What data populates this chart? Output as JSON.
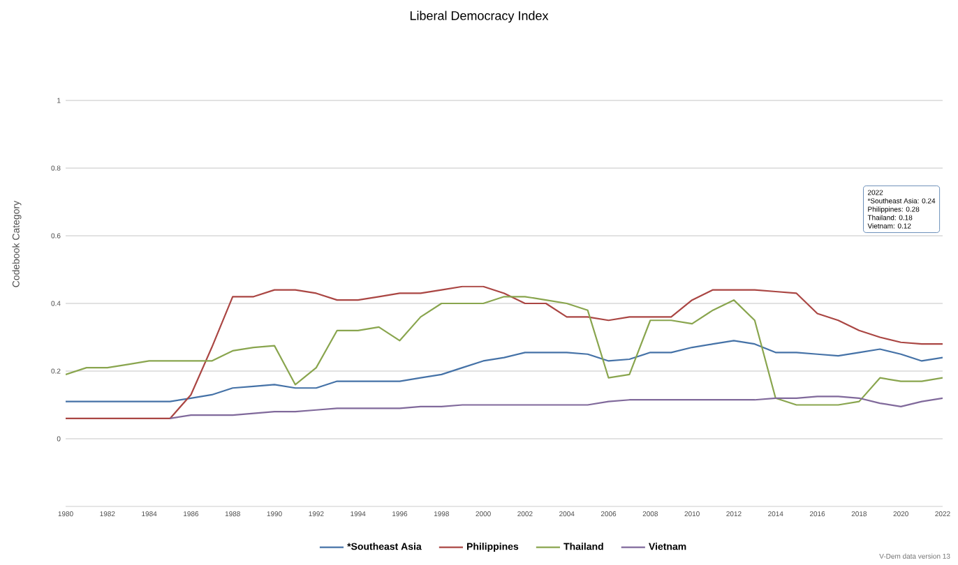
{
  "chart_data": {
    "type": "line",
    "title": "Liberal Democracy Index",
    "ylabel": "Codebook Category",
    "x": [
      1980,
      1981,
      1982,
      1983,
      1984,
      1985,
      1986,
      1987,
      1988,
      1989,
      1990,
      1991,
      1992,
      1993,
      1994,
      1995,
      1996,
      1997,
      1998,
      1999,
      2000,
      2001,
      2002,
      2003,
      2004,
      2005,
      2006,
      2007,
      2008,
      2009,
      2010,
      2011,
      2012,
      2013,
      2014,
      2015,
      2016,
      2017,
      2018,
      2019,
      2020,
      2021,
      2022
    ],
    "series": [
      {
        "name": "*Southeast Asia",
        "color": "#4572a7",
        "values": [
          0.11,
          0.11,
          0.11,
          0.11,
          0.11,
          0.11,
          0.12,
          0.13,
          0.15,
          0.155,
          0.16,
          0.15,
          0.15,
          0.17,
          0.17,
          0.17,
          0.17,
          0.18,
          0.19,
          0.21,
          0.23,
          0.24,
          0.255,
          0.255,
          0.255,
          0.25,
          0.23,
          0.235,
          0.255,
          0.255,
          0.27,
          0.28,
          0.29,
          0.28,
          0.255,
          0.255,
          0.25,
          0.245,
          0.255,
          0.265,
          0.25,
          0.23,
          0.24
        ]
      },
      {
        "name": "Philippines",
        "color": "#aa4643",
        "values": [
          0.06,
          0.06,
          0.06,
          0.06,
          0.06,
          0.06,
          0.13,
          0.27,
          0.42,
          0.42,
          0.44,
          0.44,
          0.43,
          0.41,
          0.41,
          0.42,
          0.43,
          0.43,
          0.44,
          0.45,
          0.45,
          0.43,
          0.4,
          0.4,
          0.36,
          0.36,
          0.35,
          0.36,
          0.36,
          0.36,
          0.41,
          0.44,
          0.44,
          0.44,
          0.435,
          0.43,
          0.37,
          0.35,
          0.32,
          0.3,
          0.285,
          0.28,
          0.28
        ]
      },
      {
        "name": "Thailand",
        "color": "#89a54e",
        "values": [
          0.19,
          0.21,
          0.21,
          0.22,
          0.23,
          0.23,
          0.23,
          0.23,
          0.26,
          0.27,
          0.275,
          0.16,
          0.21,
          0.32,
          0.32,
          0.33,
          0.29,
          0.36,
          0.4,
          0.4,
          0.4,
          0.42,
          0.42,
          0.41,
          0.4,
          0.38,
          0.18,
          0.19,
          0.35,
          0.35,
          0.34,
          0.38,
          0.41,
          0.35,
          0.12,
          0.1,
          0.1,
          0.1,
          0.11,
          0.18,
          0.17,
          0.17,
          0.18
        ]
      },
      {
        "name": "Vietnam",
        "color": "#80699b",
        "values": [
          null,
          null,
          null,
          null,
          null,
          0.06,
          0.07,
          0.07,
          0.07,
          0.075,
          0.08,
          0.08,
          0.085,
          0.09,
          0.09,
          0.09,
          0.09,
          0.095,
          0.095,
          0.1,
          0.1,
          0.1,
          0.1,
          0.1,
          0.1,
          0.1,
          0.11,
          0.115,
          0.115,
          0.115,
          0.115,
          0.115,
          0.115,
          0.115,
          0.12,
          0.12,
          0.125,
          0.125,
          0.12,
          0.105,
          0.095,
          0.11,
          0.12
        ]
      }
    ],
    "xlim": [
      1980,
      2022
    ],
    "xticks": [
      1980,
      1982,
      1984,
      1986,
      1988,
      1990,
      1992,
      1994,
      1996,
      1998,
      2000,
      2002,
      2004,
      2006,
      2008,
      2010,
      2012,
      2014,
      2016,
      2018,
      2020,
      2022
    ],
    "ylim": [
      -0.2,
      1
    ],
    "yticks": [
      0,
      0.2,
      0.4,
      0.6,
      0.8,
      1
    ],
    "grid": "y",
    "legend": "bottom",
    "marker": "none",
    "line_style": "solid",
    "annotations": [
      "2022",
      "*Southeast Asia: 0.24",
      "Philippines: 0.28",
      "Thailand: 0.18",
      "Vietnam: 0.12",
      "V-Dem data version 13"
    ]
  }
}
